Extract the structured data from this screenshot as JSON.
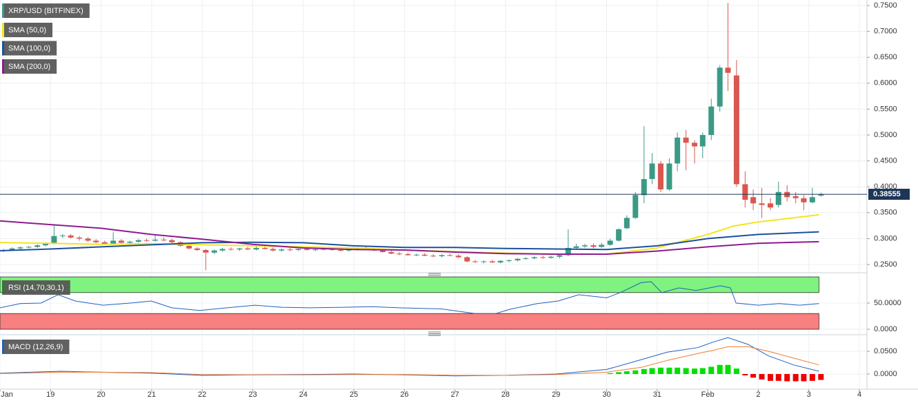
{
  "chart_data": [
    {
      "type": "candlestick",
      "title": "XRP/USD (BITFINEX)",
      "xlim": [
        18,
        35.15
      ],
      "xticks": [
        {
          "value": 18,
          "label": "Jan"
        },
        19,
        20,
        21,
        22,
        23,
        24,
        25,
        26,
        27,
        28,
        29,
        30,
        31,
        {
          "value": 32,
          "label": "Feb"
        },
        {
          "value": 33,
          "label": "2"
        },
        {
          "value": 34,
          "label": "3"
        },
        {
          "value": 35,
          "label": "4"
        }
      ],
      "ylim": [
        0.2354,
        0.7606
      ],
      "yticks": [
        {
          "value": 0.25,
          "label": "0.2500"
        },
        {
          "value": 0.3,
          "label": "0.3000"
        },
        {
          "value": 0.35,
          "label": "0.3500"
        },
        {
          "value": 0.4,
          "label": "0.4000"
        },
        {
          "value": 0.45,
          "label": "0.4500"
        },
        {
          "value": 0.5,
          "label": "0.5000"
        },
        {
          "value": 0.55,
          "label": "0.5500"
        },
        {
          "value": 0.6,
          "label": "0.6000"
        },
        {
          "value": 0.65,
          "label": "0.6500"
        },
        {
          "value": 0.7,
          "label": "0.7000"
        },
        {
          "value": 0.75,
          "label": "0.7500"
        }
      ],
      "up_color": "#3a9a86",
      "down_color": "#d9574f",
      "last_price": 0.38555,
      "candles": [
        [
          18.07,
          0.276,
          0.28,
          0.274,
          0.278
        ],
        [
          18.24,
          0.278,
          0.283,
          0.276,
          0.281
        ],
        [
          18.4,
          0.281,
          0.285,
          0.279,
          0.283
        ],
        [
          18.57,
          0.283,
          0.286,
          0.281,
          0.284
        ],
        [
          18.74,
          0.284,
          0.289,
          0.282,
          0.287
        ],
        [
          18.9,
          0.287,
          0.293,
          0.285,
          0.291
        ],
        [
          19.07,
          0.291,
          0.328,
          0.289,
          0.305
        ],
        [
          19.24,
          0.305,
          0.309,
          0.301,
          0.306
        ],
        [
          19.4,
          0.306,
          0.309,
          0.3,
          0.302
        ],
        [
          19.57,
          0.302,
          0.305,
          0.296,
          0.3
        ],
        [
          19.74,
          0.3,
          0.303,
          0.293,
          0.296
        ],
        [
          19.9,
          0.296,
          0.299,
          0.291,
          0.293
        ],
        [
          20.07,
          0.293,
          0.296,
          0.288,
          0.29
        ],
        [
          20.24,
          0.29,
          0.312,
          0.288,
          0.296
        ],
        [
          20.4,
          0.296,
          0.299,
          0.29,
          0.292
        ],
        [
          20.57,
          0.292,
          0.296,
          0.288,
          0.294
        ],
        [
          20.74,
          0.294,
          0.299,
          0.292,
          0.297
        ],
        [
          20.9,
          0.297,
          0.3,
          0.294,
          0.296
        ],
        [
          21.07,
          0.296,
          0.308,
          0.294,
          0.298
        ],
        [
          21.24,
          0.298,
          0.302,
          0.295,
          0.297
        ],
        [
          21.4,
          0.297,
          0.3,
          0.291,
          0.293
        ],
        [
          21.57,
          0.293,
          0.295,
          0.284,
          0.286
        ],
        [
          21.74,
          0.286,
          0.288,
          0.279,
          0.281
        ],
        [
          21.9,
          0.281,
          0.284,
          0.276,
          0.278
        ],
        [
          22.07,
          0.278,
          0.28,
          0.239,
          0.273
        ],
        [
          22.24,
          0.273,
          0.279,
          0.27,
          0.277
        ],
        [
          22.4,
          0.277,
          0.282,
          0.275,
          0.28
        ],
        [
          22.57,
          0.28,
          0.283,
          0.277,
          0.279
        ],
        [
          22.74,
          0.279,
          0.282,
          0.276,
          0.281
        ],
        [
          22.9,
          0.281,
          0.284,
          0.278,
          0.279
        ],
        [
          23.07,
          0.279,
          0.285,
          0.277,
          0.282
        ],
        [
          23.24,
          0.282,
          0.285,
          0.279,
          0.28
        ],
        [
          23.4,
          0.28,
          0.283,
          0.275,
          0.277
        ],
        [
          23.57,
          0.277,
          0.281,
          0.275,
          0.279
        ],
        [
          23.74,
          0.279,
          0.282,
          0.276,
          0.278
        ],
        [
          23.9,
          0.278,
          0.281,
          0.276,
          0.28
        ],
        [
          24.07,
          0.28,
          0.283,
          0.277,
          0.278
        ],
        [
          24.24,
          0.278,
          0.281,
          0.276,
          0.279
        ],
        [
          24.4,
          0.279,
          0.282,
          0.277,
          0.28
        ],
        [
          24.57,
          0.28,
          0.283,
          0.277,
          0.278
        ],
        [
          24.74,
          0.278,
          0.281,
          0.275,
          0.277
        ],
        [
          24.9,
          0.277,
          0.28,
          0.275,
          0.279
        ],
        [
          25.07,
          0.279,
          0.283,
          0.277,
          0.281
        ],
        [
          25.24,
          0.281,
          0.286,
          0.278,
          0.279
        ],
        [
          25.4,
          0.279,
          0.282,
          0.276,
          0.277
        ],
        [
          25.57,
          0.277,
          0.28,
          0.273,
          0.274
        ],
        [
          25.74,
          0.274,
          0.277,
          0.27,
          0.271
        ],
        [
          25.9,
          0.271,
          0.274,
          0.268,
          0.27
        ],
        [
          26.07,
          0.27,
          0.273,
          0.267,
          0.268
        ],
        [
          26.24,
          0.268,
          0.271,
          0.266,
          0.269
        ],
        [
          26.4,
          0.269,
          0.272,
          0.266,
          0.267
        ],
        [
          26.57,
          0.267,
          0.27,
          0.264,
          0.266
        ],
        [
          26.74,
          0.266,
          0.27,
          0.264,
          0.268
        ],
        [
          26.9,
          0.268,
          0.271,
          0.266,
          0.267
        ],
        [
          27.07,
          0.267,
          0.27,
          0.262,
          0.264
        ],
        [
          27.24,
          0.264,
          0.266,
          0.254,
          0.256
        ],
        [
          27.4,
          0.256,
          0.259,
          0.253,
          0.255
        ],
        [
          27.57,
          0.255,
          0.258,
          0.252,
          0.256
        ],
        [
          27.74,
          0.256,
          0.259,
          0.253,
          0.254
        ],
        [
          27.9,
          0.254,
          0.258,
          0.252,
          0.257
        ],
        [
          28.07,
          0.257,
          0.26,
          0.254,
          0.258
        ],
        [
          28.24,
          0.258,
          0.262,
          0.256,
          0.261
        ],
        [
          28.4,
          0.261,
          0.264,
          0.259,
          0.262
        ],
        [
          28.57,
          0.262,
          0.266,
          0.26,
          0.264
        ],
        [
          28.74,
          0.264,
          0.267,
          0.261,
          0.263
        ],
        [
          28.9,
          0.263,
          0.267,
          0.261,
          0.265
        ],
        [
          29.07,
          0.265,
          0.27,
          0.262,
          0.268
        ],
        [
          29.24,
          0.268,
          0.318,
          0.266,
          0.282
        ],
        [
          29.4,
          0.282,
          0.29,
          0.279,
          0.285
        ],
        [
          29.57,
          0.285,
          0.29,
          0.282,
          0.287
        ],
        [
          29.74,
          0.287,
          0.291,
          0.281,
          0.284
        ],
        [
          29.9,
          0.284,
          0.292,
          0.282,
          0.288
        ],
        [
          30.07,
          0.288,
          0.3,
          0.286,
          0.296
        ],
        [
          30.24,
          0.296,
          0.32,
          0.294,
          0.318
        ],
        [
          30.4,
          0.32,
          0.345,
          0.318,
          0.34
        ],
        [
          30.57,
          0.34,
          0.39,
          0.338,
          0.384
        ],
        [
          30.74,
          0.384,
          0.517,
          0.368,
          0.415
        ],
        [
          30.9,
          0.415,
          0.465,
          0.405,
          0.445
        ],
        [
          31.07,
          0.445,
          0.45,
          0.39,
          0.395
        ],
        [
          31.24,
          0.395,
          0.455,
          0.392,
          0.445
        ],
        [
          31.4,
          0.445,
          0.505,
          0.43,
          0.495
        ],
        [
          31.57,
          0.495,
          0.51,
          0.432,
          0.485
        ],
        [
          31.74,
          0.485,
          0.49,
          0.445,
          0.478
        ],
        [
          31.9,
          0.478,
          0.505,
          0.455,
          0.5
        ],
        [
          32.07,
          0.5,
          0.57,
          0.49,
          0.555
        ],
        [
          32.24,
          0.555,
          0.635,
          0.545,
          0.63
        ],
        [
          32.4,
          0.63,
          0.755,
          0.585,
          0.62
        ],
        [
          32.57,
          0.615,
          0.645,
          0.4,
          0.405
        ],
        [
          32.74,
          0.405,
          0.43,
          0.36,
          0.375
        ],
        [
          32.9,
          0.38,
          0.395,
          0.355,
          0.368
        ],
        [
          33.07,
          0.368,
          0.398,
          0.34,
          0.365
        ],
        [
          33.24,
          0.368,
          0.378,
          0.355,
          0.36
        ],
        [
          33.4,
          0.365,
          0.41,
          0.36,
          0.39
        ],
        [
          33.57,
          0.39,
          0.403,
          0.372,
          0.38
        ],
        [
          33.74,
          0.382,
          0.39,
          0.368,
          0.378
        ],
        [
          33.9,
          0.378,
          0.384,
          0.355,
          0.37
        ],
        [
          34.07,
          0.37,
          0.398,
          0.368,
          0.38
        ],
        [
          34.24,
          0.383,
          0.389,
          0.381,
          0.3856
        ]
      ],
      "series": [
        {
          "name": "SMA (50,0)",
          "color": "#f5e41c",
          "x": [
            18,
            19,
            20,
            21,
            22,
            23,
            24,
            25,
            26,
            27,
            28,
            29,
            30,
            31,
            32,
            32.5,
            33,
            34.2
          ],
          "values": [
            0.2925,
            0.291,
            0.289,
            0.29,
            0.288,
            0.286,
            0.284,
            0.282,
            0.278,
            0.275,
            0.272,
            0.27,
            0.27,
            0.282,
            0.308,
            0.324,
            0.332,
            0.346
          ]
        },
        {
          "name": "SMA (100,0)",
          "color": "#1b4f9c",
          "x": [
            18,
            19,
            20,
            21,
            22,
            23,
            24,
            25,
            26,
            27,
            28,
            29,
            30,
            31,
            32,
            33,
            34.2
          ],
          "values": [
            0.2766,
            0.28,
            0.284,
            0.288,
            0.292,
            0.293,
            0.292,
            0.286,
            0.283,
            0.283,
            0.281,
            0.28,
            0.279,
            0.286,
            0.3,
            0.308,
            0.313
          ]
        },
        {
          "name": "SMA (200,0)",
          "color": "#8e1a8e",
          "x": [
            18,
            19,
            20,
            21,
            22,
            23,
            24,
            25,
            26,
            27,
            28,
            29,
            30,
            31,
            32,
            33,
            34.2
          ],
          "values": [
            0.334,
            0.327,
            0.32,
            0.308,
            0.299,
            0.289,
            0.282,
            0.279,
            0.278,
            0.274,
            0.271,
            0.27,
            0.27,
            0.276,
            0.284,
            0.291,
            0.294
          ]
        }
      ]
    },
    {
      "type": "rsi",
      "title": "RSI (14,70,30,1)",
      "ylim": [
        -9.2,
        105.3
      ],
      "yticks": [
        {
          "value": 0,
          "label": "0.0000"
        },
        {
          "value": 50,
          "label": "50.0000"
        }
      ],
      "bands": [
        {
          "from": 70,
          "to": 100,
          "color": "#7ff27f"
        },
        {
          "from": 0,
          "to": 30,
          "color": "#f88080"
        }
      ],
      "series": [
        {
          "color": "#1f5fc4",
          "x": [
            18,
            18.4,
            18.81,
            19.15,
            19.49,
            20.04,
            20.58,
            20.99,
            21.4,
            21.95,
            22.49,
            23.04,
            23.58,
            24.13,
            24.81,
            25.36,
            25.9,
            26.72,
            27.4,
            27.81,
            28.08,
            28.63,
            29.04,
            29.45,
            30.0,
            30.27,
            30.68,
            30.88,
            31.09,
            31.43,
            31.77,
            32.25,
            32.45,
            32.56,
            33.0,
            33.41,
            33.82,
            34.2
          ],
          "values": [
            41,
            49,
            50,
            66,
            54,
            46,
            50,
            54,
            41,
            36,
            41,
            46,
            42,
            41,
            42,
            43,
            41,
            39,
            30,
            30,
            38,
            49,
            54,
            66,
            60,
            70,
            89,
            91,
            70,
            79,
            74,
            83,
            79,
            50,
            46,
            49,
            46,
            49
          ]
        }
      ]
    },
    {
      "type": "macd",
      "title": "MACD (12,26,9)",
      "ylim": [
        -0.0333,
        0.0833
      ],
      "yticks": [
        {
          "value": 0,
          "label": "0.0000"
        },
        {
          "value": 0.05,
          "label": "0.0500"
        }
      ],
      "up_color": "#00e000",
      "down_color": "#ee0000",
      "histogram": {
        "x": [
          30.07,
          30.24,
          30.4,
          30.57,
          30.74,
          30.9,
          31.07,
          31.24,
          31.4,
          31.57,
          31.74,
          31.9,
          32.07,
          32.24,
          32.4,
          32.57,
          32.74,
          32.9,
          33.07,
          33.24,
          33.4,
          33.57,
          33.74,
          33.9,
          34.07,
          34.24
        ],
        "values": [
          0.002,
          0.004,
          0.006,
          0.008,
          0.011,
          0.013,
          0.014,
          0.014,
          0.014,
          0.013,
          0.012,
          0.013,
          0.016,
          0.02,
          0.02,
          0.012,
          -0.003,
          -0.008,
          -0.012,
          -0.015,
          -0.015,
          -0.016,
          -0.016,
          -0.016,
          -0.015,
          -0.013
        ]
      },
      "series": [
        {
          "color": "#1f5fc4",
          "x": [
            18,
            19.2,
            20,
            21,
            22,
            23,
            24,
            25,
            26,
            27,
            28,
            29,
            30,
            30.7,
            31.2,
            31.8,
            32.1,
            32.4,
            32.8,
            33.2,
            33.7,
            34.2
          ],
          "values": [
            0.002,
            0.006,
            0.004,
            0.002,
            -0.003,
            -0.002,
            -0.001,
            0,
            -0.002,
            -0.004,
            -0.003,
            0,
            0.01,
            0.032,
            0.048,
            0.058,
            0.07,
            0.08,
            0.065,
            0.04,
            0.02,
            0.006
          ]
        },
        {
          "color": "#f07a2a",
          "x": [
            18,
            19.2,
            20,
            21,
            22,
            23,
            24,
            25,
            26,
            27,
            28,
            29,
            30,
            30.7,
            31.2,
            31.8,
            32.1,
            32.4,
            32.8,
            33.2,
            33.7,
            34.2
          ],
          "values": [
            0.001,
            0.004,
            0.004,
            0.003,
            -0.001,
            -0.002,
            -0.002,
            -0.001,
            -0.001,
            -0.003,
            -0.003,
            -0.001,
            0.004,
            0.015,
            0.03,
            0.045,
            0.052,
            0.06,
            0.06,
            0.05,
            0.035,
            0.02
          ]
        }
      ]
    }
  ]
}
